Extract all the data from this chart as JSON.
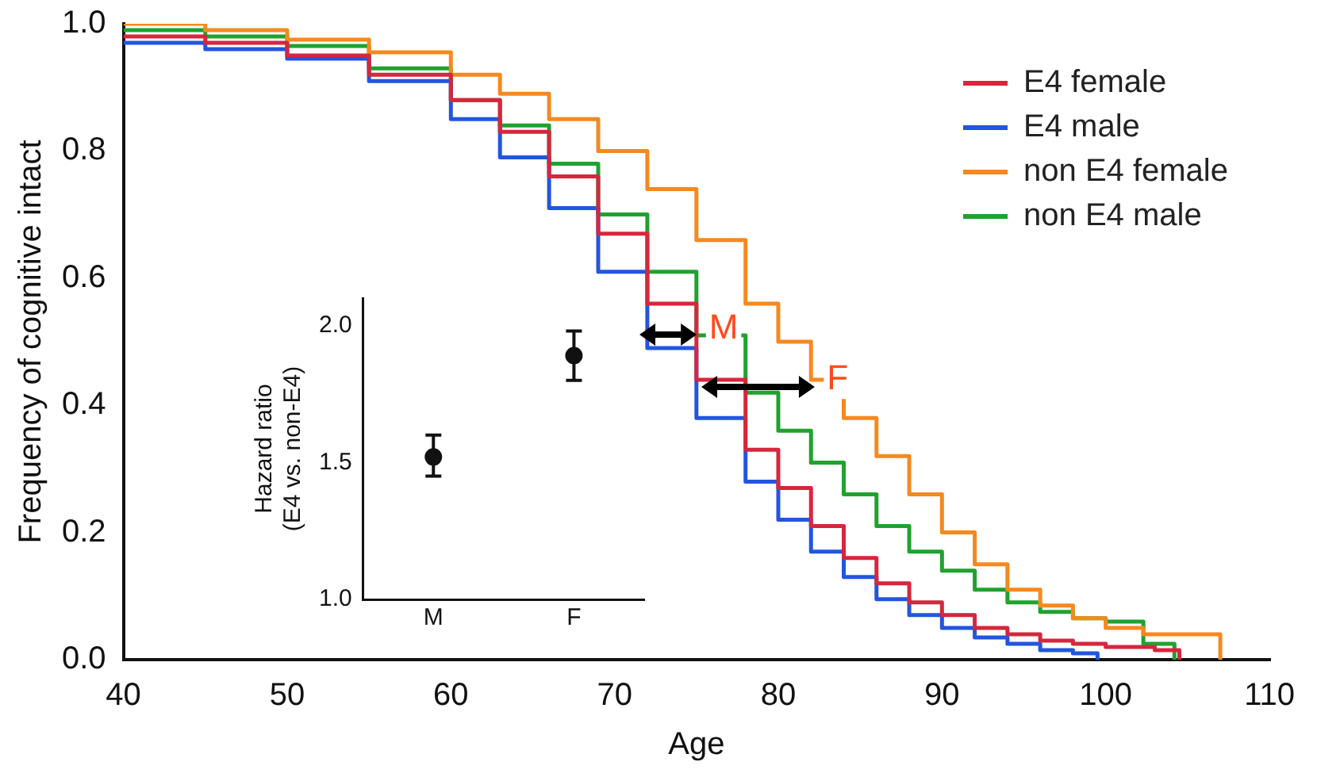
{
  "chart_data": [
    {
      "type": "step",
      "xlabel": "Age",
      "ylabel": "Frequency of cognitive intact",
      "xlim": [
        40,
        110
      ],
      "xticks": [
        40,
        50,
        60,
        70,
        80,
        90,
        100,
        110
      ],
      "ylim": [
        0,
        1
      ],
      "yticks": [
        {
          "value": 0,
          "label": "0.0"
        },
        {
          "value": 0.2,
          "label": "0.2"
        },
        {
          "value": 0.4,
          "label": "0.4"
        },
        {
          "value": 0.6,
          "label": "0.6"
        },
        {
          "value": 0.8,
          "label": "0.8"
        },
        {
          "value": 1,
          "label": "1.0"
        }
      ],
      "grid": false,
      "legend": "top right",
      "marker": "none",
      "line_style": "solid",
      "series": [
        {
          "name": "E4 female",
          "color": "#d7263d",
          "x": [
            40,
            45,
            50,
            55,
            60,
            63,
            66,
            69,
            72,
            75,
            78,
            80,
            82,
            84,
            86,
            88,
            90,
            92,
            94,
            96,
            98,
            100,
            103,
            104.5
          ],
          "values": [
            0.98,
            0.97,
            0.95,
            0.92,
            0.88,
            0.83,
            0.76,
            0.67,
            0.56,
            0.44,
            0.33,
            0.27,
            0.21,
            0.16,
            0.12,
            0.09,
            0.07,
            0.05,
            0.04,
            0.03,
            0.025,
            0.02,
            0.015,
            0
          ]
        },
        {
          "name": "E4 male",
          "color": "#2255e0",
          "x": [
            40,
            45,
            50,
            55,
            60,
            63,
            66,
            69,
            72,
            75,
            78,
            80,
            82,
            84,
            86,
            88,
            90,
            92,
            94,
            96,
            98,
            99.5
          ],
          "values": [
            0.97,
            0.96,
            0.945,
            0.91,
            0.85,
            0.79,
            0.71,
            0.61,
            0.49,
            0.38,
            0.28,
            0.22,
            0.17,
            0.13,
            0.095,
            0.07,
            0.05,
            0.035,
            0.025,
            0.015,
            0.01,
            0
          ]
        },
        {
          "name": "non E4 female",
          "color": "#f5891f",
          "x": [
            40,
            45,
            50,
            55,
            60,
            63,
            66,
            69,
            72,
            75,
            78,
            80,
            82,
            84,
            86,
            88,
            90,
            92,
            94,
            96,
            98,
            100,
            102.3,
            107
          ],
          "values": [
            1,
            0.99,
            0.975,
            0.955,
            0.92,
            0.89,
            0.85,
            0.8,
            0.74,
            0.66,
            0.56,
            0.5,
            0.44,
            0.38,
            0.32,
            0.26,
            0.2,
            0.15,
            0.11,
            0.085,
            0.065,
            0.05,
            0.04,
            0
          ]
        },
        {
          "name": "non E4 male",
          "color": "#1fa22e",
          "x": [
            40,
            45,
            50,
            55,
            60,
            63,
            66,
            69,
            72,
            75,
            78,
            80,
            82,
            84,
            86,
            88,
            90,
            92,
            94,
            96,
            98,
            100,
            102.3,
            104.2
          ],
          "values": [
            0.99,
            0.98,
            0.965,
            0.93,
            0.88,
            0.84,
            0.78,
            0.7,
            0.61,
            0.51,
            0.42,
            0.36,
            0.31,
            0.26,
            0.21,
            0.17,
            0.14,
            0.11,
            0.09,
            0.075,
            0.065,
            0.06,
            0.025,
            0
          ]
        }
      ],
      "annotations": [
        {
          "text": "M",
          "x": 75,
          "y": 0.51
        },
        {
          "text": "F",
          "x": 82.2,
          "y": 0.43
        }
      ]
    },
    {
      "type": "scatter",
      "ylabel": "Hazard ratio\n(E4 vs. non-E4)",
      "categories": [
        "M",
        "F"
      ],
      "values": [
        1.52,
        1.89
      ],
      "errors": [
        [
          1.45,
          1.6
        ],
        [
          1.8,
          1.98
        ]
      ],
      "color": "#111111",
      "marker": "circle",
      "ylim": [
        1,
        2.1
      ],
      "yticks": [
        {
          "value": 1,
          "label": "1.0"
        },
        {
          "value": 1.5,
          "label": "1.5"
        },
        {
          "value": 2,
          "label": "2.0"
        }
      ],
      "grid": false
    }
  ]
}
